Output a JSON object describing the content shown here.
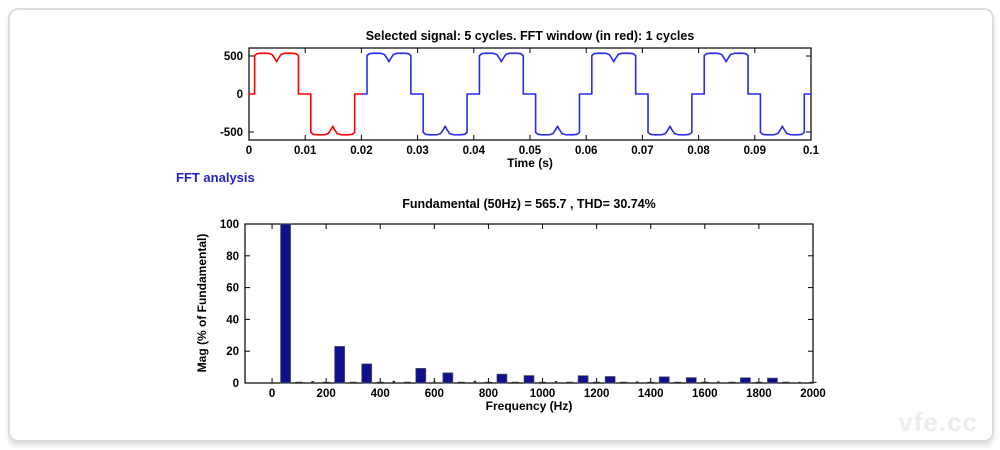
{
  "fft_section_label": "FFT analysis",
  "watermark_text": "vfe.cc",
  "colors": {
    "fft_window_line": "#ff0000",
    "signal_line": "#2a2aef",
    "bar_fill": "#10108e",
    "bar_small_fill": "#2a2a2a",
    "axis": "#000000",
    "fft_label_blue": "#2121cc",
    "card_border": "#dcdcdc",
    "watermark_gray": "#ededed"
  },
  "chart_data": [
    {
      "id": "selected-signal",
      "type": "line",
      "title": "Selected signal: 5 cycles. FFT window (in red): 1 cycles",
      "xlabel": "Time (s)",
      "ylabel": "",
      "xlim": [
        0,
        0.1
      ],
      "ylim": [
        -605,
        605
      ],
      "x_ticks": [
        0,
        0.01,
        0.02,
        0.03,
        0.04,
        0.05,
        0.06,
        0.07,
        0.08,
        0.09,
        0.1
      ],
      "x_tick_labels": [
        "0",
        "0.01",
        "0.02",
        "0.03",
        "0.04",
        "0.05",
        "0.06",
        "0.07",
        "0.08",
        "0.09",
        "0.1"
      ],
      "y_ticks": [
        500,
        0,
        -500
      ],
      "y_tick_labels": [
        "500",
        "0",
        "-500"
      ],
      "cycles": 5,
      "period_s": 0.02,
      "fft_window_cycles": 1,
      "amplitude_peak": 537,
      "cycle_points": [
        [
          0.0,
          0
        ],
        [
          0.001,
          0
        ],
        [
          0.001,
          505
        ],
        [
          0.0014,
          530
        ],
        [
          0.0022,
          537
        ],
        [
          0.0035,
          535
        ],
        [
          0.0041,
          520
        ],
        [
          0.0046,
          465
        ],
        [
          0.0049,
          424
        ],
        [
          0.0052,
          465
        ],
        [
          0.0057,
          520
        ],
        [
          0.0063,
          535
        ],
        [
          0.0076,
          537
        ],
        [
          0.0084,
          530
        ],
        [
          0.0088,
          505
        ],
        [
          0.0088,
          0
        ],
        [
          0.011,
          0
        ],
        [
          0.011,
          -505
        ],
        [
          0.0114,
          -530
        ],
        [
          0.0122,
          -537
        ],
        [
          0.0135,
          -535
        ],
        [
          0.0141,
          -520
        ],
        [
          0.0146,
          -465
        ],
        [
          0.0149,
          -424
        ],
        [
          0.0152,
          -465
        ],
        [
          0.0157,
          -520
        ],
        [
          0.0163,
          -535
        ],
        [
          0.0176,
          -537
        ],
        [
          0.0184,
          -530
        ],
        [
          0.0188,
          -505
        ],
        [
          0.0188,
          0
        ],
        [
          0.02,
          0
        ]
      ]
    },
    {
      "id": "fft-spectrum",
      "type": "bar",
      "title": "Fundamental (50Hz) = 565.7 , THD= 30.74%",
      "xlabel": "Frequency (Hz)",
      "ylabel": "Mag (% of Fundamental)",
      "fundamental_hz": 50,
      "fundamental_value": 565.7,
      "thd_percent": 30.74,
      "xlim": [
        -100,
        2000
      ],
      "ylim": [
        0,
        100
      ],
      "x_ticks": [
        0,
        200,
        400,
        600,
        800,
        1000,
        1200,
        1400,
        1600,
        1800,
        2000
      ],
      "x_tick_labels": [
        "0",
        "200",
        "400",
        "600",
        "800",
        "1000",
        "1200",
        "1400",
        "1600",
        "1800",
        "2000"
      ],
      "y_ticks": [
        0,
        20,
        40,
        60,
        80,
        100
      ],
      "y_tick_labels": [
        "0",
        "20",
        "40",
        "60",
        "80",
        "100"
      ],
      "frequencies": [
        50,
        100,
        150,
        200,
        250,
        300,
        350,
        400,
        450,
        500,
        550,
        600,
        650,
        700,
        750,
        800,
        850,
        900,
        950,
        1000,
        1050,
        1100,
        1150,
        1200,
        1250,
        1300,
        1350,
        1400,
        1450,
        1500,
        1550,
        1600,
        1650,
        1700,
        1750,
        1800,
        1850,
        1900,
        1950,
        2000
      ],
      "values": [
        100,
        0.3,
        1.2,
        0.3,
        23,
        0.3,
        12,
        0.3,
        1.4,
        0.3,
        9.2,
        1.0,
        6.4,
        0.3,
        1.4,
        0.3,
        5.6,
        0.3,
        4.7,
        0.3,
        1.2,
        0.3,
        4.6,
        0.3,
        4.1,
        0.3,
        1.0,
        0.3,
        3.9,
        0.3,
        3.4,
        0.4,
        1.0,
        0.3,
        3.3,
        0.3,
        3.1,
        0.4,
        0.6,
        0.2
      ]
    }
  ]
}
